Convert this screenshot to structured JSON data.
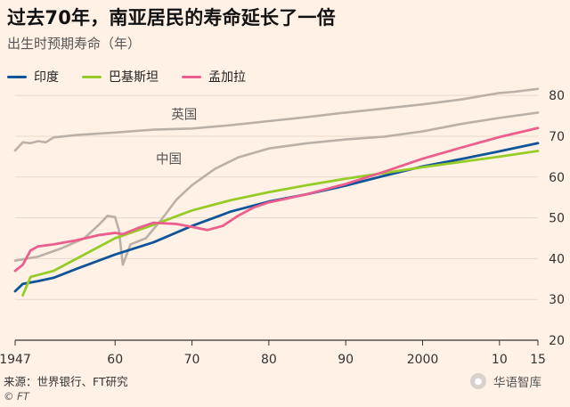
{
  "title": "过去70年，南亚居民的寿命延长了一倍",
  "subtitle": "出生时预期寿命（年）",
  "source": "来源：世界银行、FT研究",
  "credit": "© FT",
  "watermark": "华语智库",
  "colors": {
    "background": "#fff1e5",
    "grid": "#e7d9cb",
    "axis": "#333333"
  },
  "chart_data": {
    "type": "line",
    "title": "过去70年，南亚居民的寿命延长了一倍",
    "subtitle": "出生时预期寿命（年）",
    "xlabel": "",
    "ylabel": "",
    "xlim": [
      1947,
      2015
    ],
    "ylim": [
      20,
      82
    ],
    "x_ticks": [
      1947,
      1960,
      1970,
      1980,
      1990,
      2000,
      2010,
      2015
    ],
    "x_tick_labels": [
      "1947",
      "60",
      "70",
      "80",
      "90",
      "2000",
      "10",
      "15"
    ],
    "y_ticks": [
      20,
      30,
      40,
      50,
      60,
      70,
      80
    ],
    "grid": true,
    "legend": "top-left",
    "annotations": [
      "英国",
      "中国"
    ],
    "series": [
      {
        "name": "英国",
        "color": "#bbb0a8",
        "in_legend": false,
        "points": [
          [
            1947,
            66.5
          ],
          [
            1948,
            68.5
          ],
          [
            1949,
            68.3
          ],
          [
            1950,
            68.8
          ],
          [
            1951,
            68.5
          ],
          [
            1952,
            69.7
          ],
          [
            1955,
            70.3
          ],
          [
            1960,
            70.9
          ],
          [
            1965,
            71.6
          ],
          [
            1970,
            71.9
          ],
          [
            1975,
            72.7
          ],
          [
            1980,
            73.7
          ],
          [
            1985,
            74.7
          ],
          [
            1990,
            75.8
          ],
          [
            1995,
            76.8
          ],
          [
            2000,
            77.8
          ],
          [
            2005,
            79.0
          ],
          [
            2010,
            80.6
          ],
          [
            2012,
            80.9
          ],
          [
            2015,
            81.6
          ]
        ]
      },
      {
        "name": "中国",
        "color": "#bbb0a8",
        "in_legend": false,
        "points": [
          [
            1947,
            39.5
          ],
          [
            1950,
            40.5
          ],
          [
            1953,
            42.5
          ],
          [
            1956,
            45.0
          ],
          [
            1958,
            48.5
          ],
          [
            1959,
            50.5
          ],
          [
            1960,
            50.2
          ],
          [
            1960.5,
            47
          ],
          [
            1961,
            38.5
          ],
          [
            1962,
            43.5
          ],
          [
            1964,
            45.0
          ],
          [
            1966,
            49.5
          ],
          [
            1968,
            54.5
          ],
          [
            1970,
            58.0
          ],
          [
            1973,
            62.0
          ],
          [
            1976,
            64.8
          ],
          [
            1980,
            67.0
          ],
          [
            1985,
            68.3
          ],
          [
            1990,
            69.2
          ],
          [
            1995,
            69.9
          ],
          [
            2000,
            71.2
          ],
          [
            2005,
            73.0
          ],
          [
            2010,
            74.5
          ],
          [
            2015,
            75.8
          ]
        ]
      },
      {
        "name": "印度",
        "color": "#0f5499",
        "in_legend": true,
        "points": [
          [
            1947,
            32.0
          ],
          [
            1948,
            33.8
          ],
          [
            1950,
            34.5
          ],
          [
            1952,
            35.3
          ],
          [
            1955,
            37.5
          ],
          [
            1960,
            41.0
          ],
          [
            1965,
            44.0
          ],
          [
            1970,
            48.0
          ],
          [
            1975,
            51.5
          ],
          [
            1980,
            54.0
          ],
          [
            1985,
            55.8
          ],
          [
            1990,
            57.9
          ],
          [
            1995,
            60.3
          ],
          [
            2000,
            62.6
          ],
          [
            2005,
            64.4
          ],
          [
            2010,
            66.3
          ],
          [
            2015,
            68.3
          ]
        ]
      },
      {
        "name": "巴基斯坦",
        "color": "#96cc28",
        "in_legend": true,
        "points": [
          [
            1948,
            31.0
          ],
          [
            1949,
            35.5
          ],
          [
            1950,
            36.0
          ],
          [
            1952,
            37.0
          ],
          [
            1955,
            40.0
          ],
          [
            1960,
            45.0
          ],
          [
            1965,
            48.3
          ],
          [
            1970,
            51.8
          ],
          [
            1975,
            54.3
          ],
          [
            1980,
            56.3
          ],
          [
            1985,
            58.0
          ],
          [
            1990,
            59.6
          ],
          [
            1995,
            61.0
          ],
          [
            2000,
            62.4
          ],
          [
            2005,
            63.7
          ],
          [
            2010,
            65.0
          ],
          [
            2015,
            66.4
          ]
        ]
      },
      {
        "name": "孟加拉",
        "color": "#eb5e8d",
        "in_legend": true,
        "points": [
          [
            1947,
            37.0
          ],
          [
            1948,
            38.5
          ],
          [
            1949,
            42.0
          ],
          [
            1950,
            43.0
          ],
          [
            1952,
            43.5
          ],
          [
            1955,
            44.5
          ],
          [
            1958,
            45.8
          ],
          [
            1960,
            46.3
          ],
          [
            1961,
            46.0
          ],
          [
            1963,
            47.5
          ],
          [
            1965,
            48.8
          ],
          [
            1968,
            48.5
          ],
          [
            1970,
            47.8
          ],
          [
            1972,
            47.0
          ],
          [
            1974,
            48.0
          ],
          [
            1976,
            50.5
          ],
          [
            1978,
            52.5
          ],
          [
            1980,
            53.8
          ],
          [
            1985,
            55.8
          ],
          [
            1990,
            58.3
          ],
          [
            1995,
            61.3
          ],
          [
            2000,
            64.5
          ],
          [
            2005,
            67.2
          ],
          [
            2010,
            69.8
          ],
          [
            2015,
            72.0
          ]
        ]
      }
    ]
  }
}
